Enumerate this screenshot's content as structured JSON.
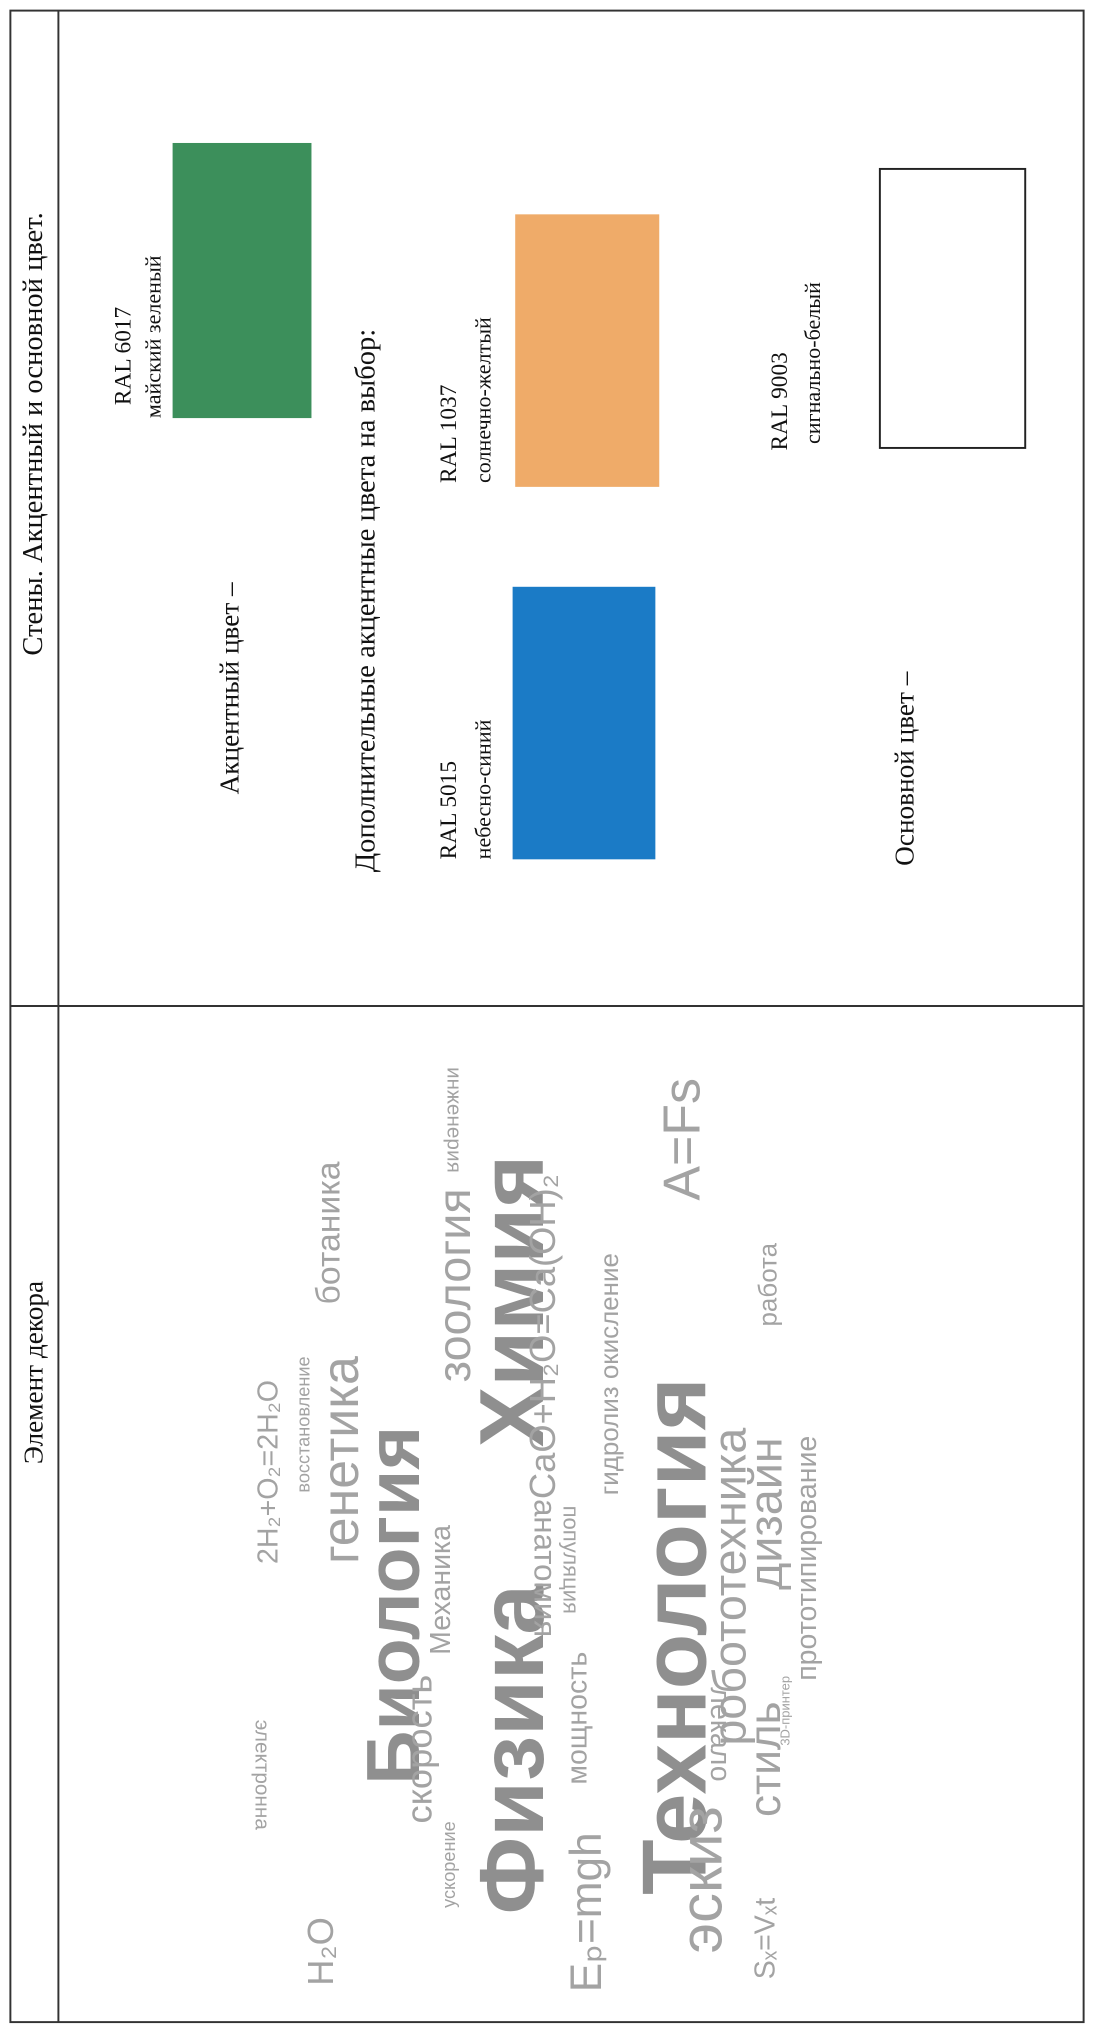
{
  "header": {
    "left": "Элемент декора",
    "right": "Стены. Акцентный и основной цвет."
  },
  "accent": {
    "label": "Акцентный цвет –",
    "swatch": {
      "code": "RAL 6017",
      "name": "майский зеленый",
      "color": "#3c8f5b"
    }
  },
  "additional": {
    "label": "Дополнительные акцентные цвета на выбор:",
    "swatches": [
      {
        "code": "RAL 5015",
        "name": "небесно-синий",
        "color": "#1b7bc6"
      },
      {
        "code": "RAL 1037",
        "name": "солнечно-желтый",
        "color": "#efab69"
      }
    ]
  },
  "main": {
    "label": "Основной цвет –",
    "swatch": {
      "code": "RAL 9003",
      "name": "сигнально-белый",
      "color": "#ffffff"
    }
  },
  "decor_image": {
    "words": [
      "Физика",
      "Биология",
      "Химия",
      "Технология",
      "генетика",
      "зоология",
      "ботаника",
      "скорость",
      "Механика",
      "ускорение",
      "мощность",
      "популяция",
      "анатомия",
      "CaO+H₂O=Ca(OH)₂",
      "гидролиз окисление",
      "A=Fs",
      "Eₚ=mgh",
      "эскиз",
      "лекало",
      "робототехника",
      "стиль",
      "дизайн",
      "работа",
      "прототипирование",
      "3D-принтер",
      "Sₓ=Vₓt",
      "2H₂+O₂=2H₂O",
      "восстановление",
      "H₂O",
      "электронна",
      "инженерия"
    ]
  }
}
